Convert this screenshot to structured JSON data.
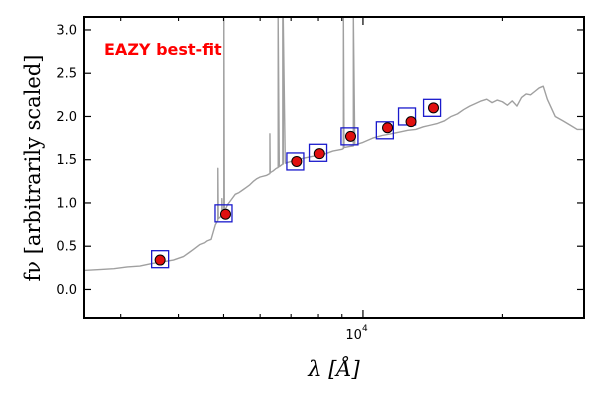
{
  "chart_data": {
    "type": "scatter",
    "title": "",
    "xlabel": "λ [Å]",
    "ylabel": "fν [arbitrarily scaled]",
    "xscale": "log",
    "xlim": [
      2500,
      30000
    ],
    "ylim": [
      -0.33,
      3.15
    ],
    "yticks": [
      0.0,
      0.5,
      1.0,
      1.5,
      2.0,
      2.5,
      3.0
    ],
    "ytick_labels": [
      "0.0",
      "0.5",
      "1.0",
      "1.5",
      "2.0",
      "2.5",
      "3.0"
    ],
    "xtick_major": [
      10000
    ],
    "xtick_major_labels": [
      "10",
      "4"
    ],
    "xtick_minor": [
      3000,
      4000,
      5000,
      6000,
      7000,
      8000,
      9000,
      20000,
      30000
    ],
    "grid": false,
    "annotation": {
      "text": "EAZY best-fit",
      "color": "#ff0000"
    },
    "colors": {
      "model": "#a0a0a0",
      "observed_points": "#e01010",
      "model_photometry_boxes": "#1a1acc"
    },
    "series": [
      {
        "kind": "line",
        "x": [
          2500,
          2700,
          2900,
          3100,
          3300,
          3500,
          3700,
          3900,
          4100,
          4200,
          4300,
          4450,
          4550,
          4600,
          4650,
          4700,
          4800,
          4860,
          4860,
          4870,
          4900,
          4950,
          4959,
          4959,
          4970,
          5007,
          5007,
          5020,
          5100,
          5200,
          5300,
          5400,
          5500,
          5600,
          5700,
          5800,
          5900,
          6000,
          6200,
          6300,
          6300,
          6310,
          6400,
          6500,
          6563,
          6563,
          6600,
          6716,
          6716,
          6731,
          6731,
          6800,
          7000,
          7200,
          7500,
          7800,
          8000,
          8300,
          8600,
          8800,
          9000,
          9069,
          9069,
          9100,
          9300,
          9531,
          9531,
          9600,
          10000,
          10500,
          11000,
          11500,
          12000,
          12500,
          13000,
          13500,
          14000,
          14500,
          15000,
          15500,
          16000,
          16500,
          17000,
          17500,
          18000,
          18500,
          19000,
          19500,
          20000,
          20500,
          21000,
          21500,
          22000,
          22500,
          23000,
          23500,
          24000,
          24500,
          25000,
          26000,
          27000,
          28000,
          29000,
          30000
        ],
        "y": [
          0.22,
          0.23,
          0.24,
          0.26,
          0.27,
          0.3,
          0.32,
          0.34,
          0.38,
          0.42,
          0.46,
          0.52,
          0.54,
          0.56,
          0.57,
          0.58,
          0.75,
          0.8,
          1.4,
          0.82,
          0.83,
          0.85,
          0.86,
          1.05,
          0.87,
          0.88,
          3.15,
          0.9,
          0.98,
          1.04,
          1.1,
          1.12,
          1.15,
          1.18,
          1.21,
          1.25,
          1.28,
          1.3,
          1.32,
          1.34,
          1.8,
          1.35,
          1.37,
          1.4,
          1.41,
          3.15,
          1.42,
          1.45,
          3.15,
          1.45,
          3.15,
          1.46,
          1.48,
          1.5,
          1.52,
          1.54,
          1.55,
          1.57,
          1.6,
          1.61,
          1.62,
          1.63,
          3.15,
          1.64,
          1.65,
          1.66,
          3.15,
          1.67,
          1.7,
          1.75,
          1.78,
          1.8,
          1.82,
          1.84,
          1.85,
          1.88,
          1.9,
          1.92,
          1.95,
          2.0,
          2.03,
          2.08,
          2.12,
          2.15,
          2.18,
          2.2,
          2.16,
          2.19,
          2.17,
          2.13,
          2.18,
          2.12,
          2.22,
          2.26,
          2.25,
          2.29,
          2.33,
          2.35,
          2.2,
          2.0,
          1.95,
          1.9,
          1.85,
          1.85
        ]
      },
      {
        "kind": "scatter",
        "x": [
          3650,
          5050,
          7200,
          8050,
          9400,
          11300,
          12700,
          14200
        ],
        "y": [
          0.34,
          0.87,
          1.48,
          1.57,
          1.77,
          1.87,
          1.94,
          2.1
        ],
        "yerr": [
          0.02,
          0.02,
          0.03,
          0.03,
          0.02,
          0.04,
          0.03,
          0.02
        ]
      },
      {
        "kind": "boxes",
        "x": [
          3650,
          5000,
          7150,
          8000,
          9350,
          11150,
          12450,
          14100
        ],
        "y": [
          0.35,
          0.88,
          1.48,
          1.58,
          1.77,
          1.84,
          2.0,
          2.1
        ]
      }
    ]
  }
}
